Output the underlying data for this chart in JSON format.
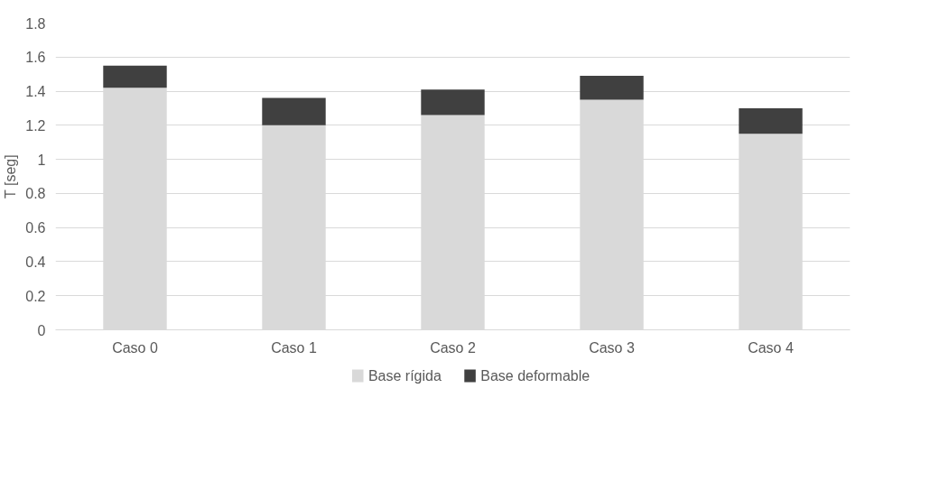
{
  "chart_data": {
    "type": "bar",
    "stacked": true,
    "ylabel": "T [seg]",
    "categories": [
      "Caso 0",
      "Caso 1",
      "Caso 2",
      "Caso 3",
      "Caso 4"
    ],
    "series": [
      {
        "name": "Base rígida",
        "color": "#d9d9d9",
        "values": [
          1.42,
          1.2,
          1.26,
          1.35,
          1.15
        ]
      },
      {
        "name": "Base deformable",
        "color": "#404040",
        "values": [
          0.13,
          0.16,
          0.15,
          0.14,
          0.15
        ]
      }
    ],
    "ylim": [
      0,
      1.8
    ],
    "yticks": [
      0,
      0.2,
      0.4,
      0.6,
      0.8,
      1,
      1.2,
      1.4,
      1.6,
      1.8
    ],
    "grid": "y",
    "legend": "bottom"
  }
}
